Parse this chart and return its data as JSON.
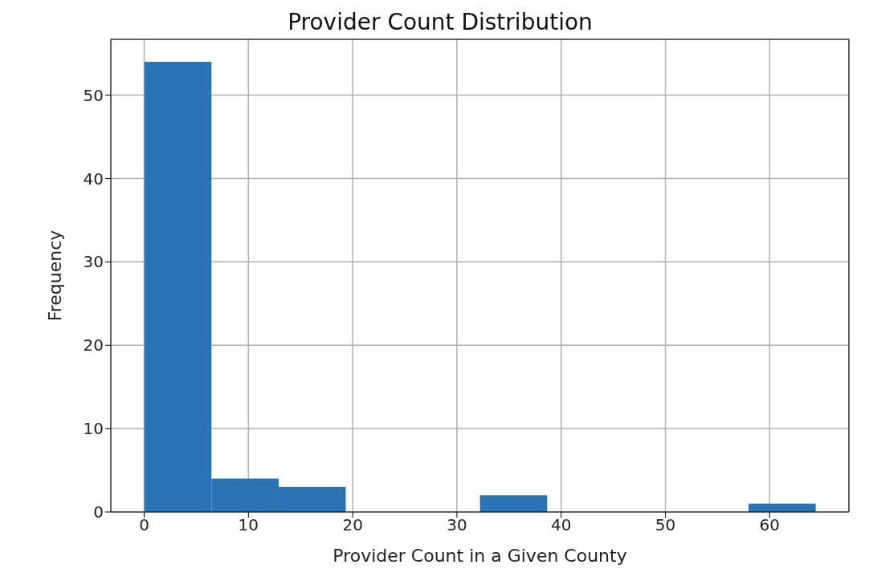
{
  "chart_data": {
    "type": "histogram",
    "title": "Provider Count Distribution",
    "xlabel": "Provider Count in a Given County",
    "ylabel": "Frequency",
    "bins": [
      0,
      6.44,
      12.88,
      19.32,
      25.76,
      32.2,
      38.64,
      45.08,
      51.52,
      57.96,
      64.4
    ],
    "values": [
      54,
      4,
      3,
      0,
      0,
      2,
      0,
      0,
      0,
      1
    ],
    "color": "#2a74b4",
    "xlim": [
      -3.2,
      67.6
    ],
    "xticks": [
      0,
      10,
      20,
      30,
      40,
      50,
      60
    ],
    "ylim": [
      0,
      56.7
    ],
    "yticks": [
      0,
      10,
      20,
      30,
      40,
      50
    ],
    "grid": true
  }
}
